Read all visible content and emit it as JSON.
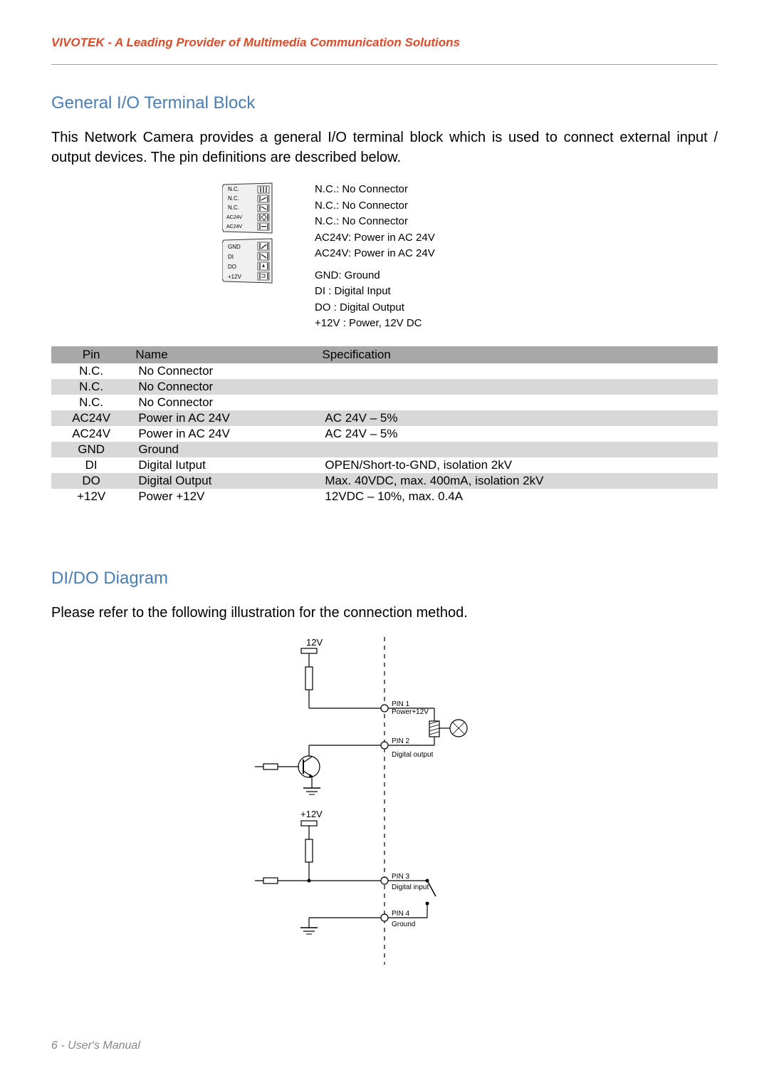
{
  "header": "VIVOTEK - A Leading Provider of Multimedia Communication Solutions",
  "sections": {
    "io": {
      "title": "General I/O Terminal Block",
      "body": "This Network Camera provides a general I/O terminal block which is used to connect external input / output devices. The pin definitions are described below."
    },
    "dido": {
      "title": "DI/DO Diagram",
      "body": "Please refer to the following illustration for the connection method."
    }
  },
  "terminal_block": {
    "upper_labels": [
      "N.C.",
      "N.C.",
      "N.C.",
      "AC24V",
      "AC24V"
    ],
    "lower_labels": [
      "GND",
      "DI",
      "DO",
      "+12V"
    ],
    "legend_upper": [
      "N.C.: No Connector",
      "N.C.: No Connector",
      "N.C.: No Connector",
      "AC24V: Power in AC 24V",
      "AC24V: Power in AC 24V"
    ],
    "legend_lower": [
      "GND: Ground",
      "DI  : Digital Input",
      "DO : Digital Output",
      "+12V : Power, 12V DC"
    ]
  },
  "pin_table": {
    "headers": [
      "Pin",
      "Name",
      "Specification"
    ],
    "rows": [
      [
        "N.C.",
        "No Connector",
        ""
      ],
      [
        "N.C.",
        "No Connector",
        ""
      ],
      [
        "N.C.",
        "No Connector",
        ""
      ],
      [
        "AC24V",
        "Power in AC 24V",
        "AC 24V – 5%"
      ],
      [
        "AC24V",
        "Power in AC 24V",
        "AC 24V – 5%"
      ],
      [
        "GND",
        "Ground",
        ""
      ],
      [
        "DI",
        "Digital Iutput",
        "OPEN/Short-to-GND, isolation 2kV"
      ],
      [
        "DO",
        "Digital Output",
        "Max. 40VDC, max. 400mA, isolation 2kV"
      ],
      [
        "+12V",
        "Power +12V",
        "12VDC – 10%, max. 0.4A"
      ]
    ]
  },
  "dido_diagram": {
    "top_label": "12V",
    "bottom_label": "+12V",
    "pins": [
      {
        "num": "PIN 1",
        "name": "Power+12V"
      },
      {
        "num": "PIN 2",
        "name": "Digital output"
      },
      {
        "num": "PIN 3",
        "name": "Digital input"
      },
      {
        "num": "PIN 4",
        "name": "Ground"
      }
    ]
  },
  "footer": "6 - User's Manual",
  "colors": {
    "header_color": "#d94c2a",
    "section_title_color": "#4a7db3",
    "table_header_bg": "#a8a8a8",
    "table_row_alt_bg": "#d8d8d8",
    "footer_color": "#888888"
  }
}
